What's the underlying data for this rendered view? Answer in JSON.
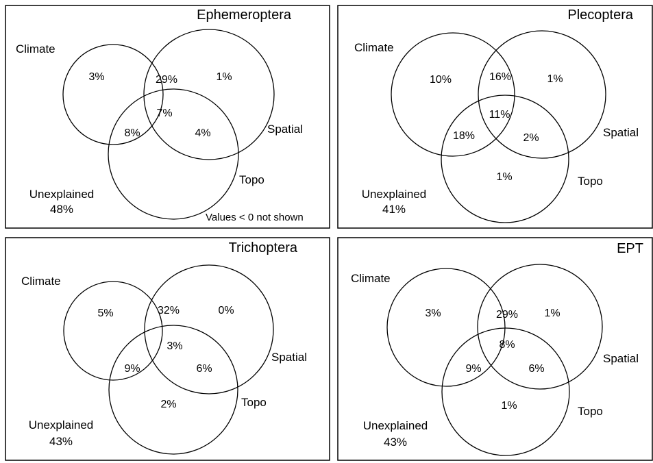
{
  "panels": [
    {
      "title": "Ephemeroptera",
      "labels": {
        "climate": "Climate",
        "spatial": "Spatial",
        "topo": "Topo",
        "unexplained": "Unexplained",
        "unexplained_value": "48%"
      },
      "regions": {
        "climate_only": "3%",
        "climate_spatial": "29%",
        "spatial_only": "1%",
        "all_three": "7%",
        "climate_topo": "8%",
        "spatial_topo": "4%",
        "topo_only": ""
      },
      "note": "Values < 0 not shown"
    },
    {
      "title": "Plecoptera",
      "labels": {
        "climate": "Climate",
        "spatial": "Spatial",
        "topo": "Topo",
        "unexplained": "Unexplained",
        "unexplained_value": "41%"
      },
      "regions": {
        "climate_only": "10%",
        "climate_spatial": "16%",
        "spatial_only": "1%",
        "all_three": "11%",
        "climate_topo": "18%",
        "spatial_topo": "2%",
        "topo_only": "1%"
      },
      "note": ""
    },
    {
      "title": "Trichoptera",
      "labels": {
        "climate": "Climate",
        "spatial": "Spatial",
        "topo": "Topo",
        "unexplained": "Unexplained",
        "unexplained_value": "43%"
      },
      "regions": {
        "climate_only": "5%",
        "climate_spatial": "32%",
        "spatial_only": "0%",
        "all_three": "3%",
        "climate_topo": "9%",
        "spatial_topo": "6%",
        "topo_only": "2%"
      },
      "note": ""
    },
    {
      "title": "EPT",
      "labels": {
        "climate": "Climate",
        "spatial": "Spatial",
        "topo": "Topo",
        "unexplained": "Unexplained",
        "unexplained_value": "43%"
      },
      "regions": {
        "climate_only": "3%",
        "climate_spatial": "29%",
        "spatial_only": "1%",
        "all_three": "8%",
        "climate_topo": "9%",
        "spatial_topo": "6%",
        "topo_only": "1%"
      },
      "note": ""
    }
  ]
}
